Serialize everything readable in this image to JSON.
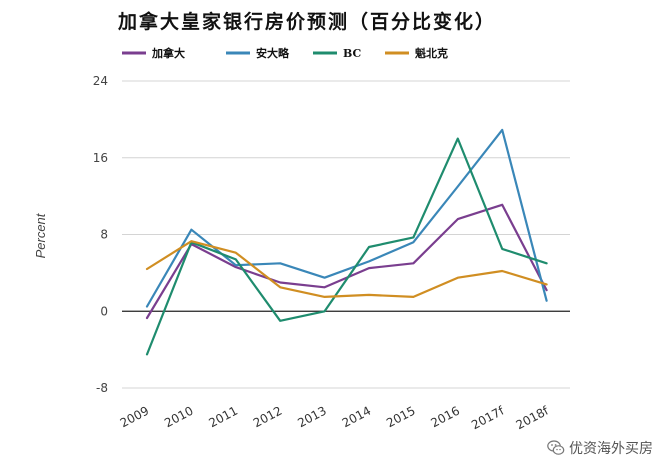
{
  "chart_data": {
    "type": "line",
    "title": "加拿大皇家银行房价预测（百分比变化）",
    "ylabel": "Percent",
    "xlabel": "",
    "ylim": [
      -8,
      24
    ],
    "yticks": [
      -8,
      0,
      8,
      16,
      24
    ],
    "grid": true,
    "legend_position": "top",
    "categories": [
      "2009",
      "2010",
      "2011",
      "2012",
      "2013",
      "2014",
      "2015",
      "2016",
      "2017f",
      "2018f"
    ],
    "series": [
      {
        "name": "加拿大",
        "color": "#7a3e8f",
        "values": [
          -0.7,
          7.0,
          4.6,
          3.0,
          2.5,
          4.5,
          5.0,
          9.6,
          11.1,
          2.2
        ]
      },
      {
        "name": "安大略",
        "color": "#3a87b8",
        "values": [
          0.5,
          8.5,
          4.8,
          5.0,
          3.5,
          5.2,
          7.2,
          13.0,
          18.9,
          1.1
        ]
      },
      {
        "name": "BC",
        "color": "#1f8c6e",
        "values": [
          -4.5,
          7.2,
          5.4,
          -1.0,
          0.0,
          6.7,
          7.7,
          18.0,
          6.5,
          5.0
        ]
      },
      {
        "name": "魁北克",
        "color": "#d08e22",
        "values": [
          4.4,
          7.3,
          6.1,
          2.5,
          1.5,
          1.7,
          1.5,
          3.5,
          4.2,
          2.8
        ]
      }
    ]
  },
  "watermark": {
    "text": "优资海外买房",
    "icon": "wechat-icon"
  }
}
